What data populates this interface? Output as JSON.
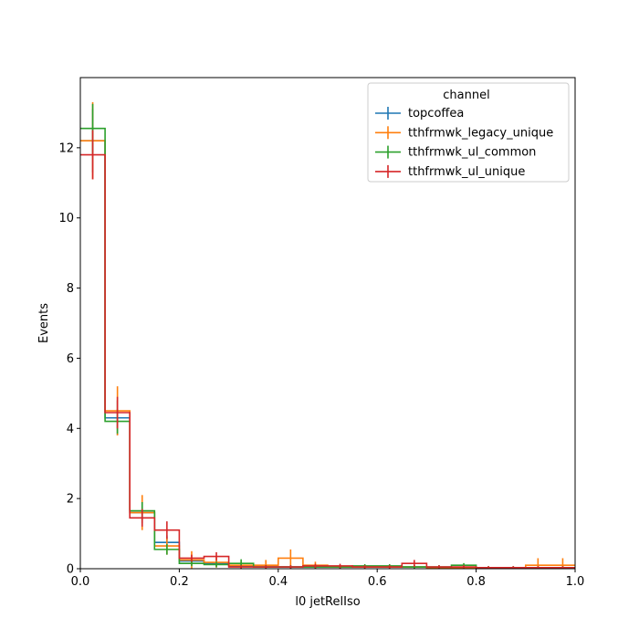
{
  "chart_data": {
    "type": "histogram-step",
    "xlabel": "l0 jetRelIso",
    "ylabel": "Events",
    "xlim": [
      0.0,
      1.0
    ],
    "ylim": [
      0,
      14
    ],
    "x_ticks": [
      0.0,
      0.2,
      0.4,
      0.6,
      0.8,
      1.0
    ],
    "x_tick_labels": [
      "0.0",
      "0.2",
      "0.4",
      "0.6",
      "0.8",
      "1.0"
    ],
    "y_ticks": [
      0,
      2,
      4,
      6,
      8,
      10,
      12
    ],
    "y_tick_labels": [
      "0",
      "2",
      "4",
      "6",
      "8",
      "10",
      "12"
    ],
    "grid": false,
    "legend": {
      "title": "channel",
      "placement": "top-right"
    },
    "bin_edges": [
      0.0,
      0.05,
      0.1,
      0.15,
      0.2,
      0.25,
      0.3,
      0.35,
      0.4,
      0.45,
      0.5,
      0.55,
      0.6,
      0.65,
      0.7,
      0.75,
      0.8,
      0.85,
      0.9,
      0.95,
      1.0
    ],
    "series": [
      {
        "name": "topcoffea",
        "color": "#1f77b4",
        "values": [
          12.2,
          4.3,
          1.6,
          0.75,
          0.22,
          0.15,
          0.08,
          0.05,
          0.05,
          0.05,
          0.05,
          0.05,
          0.05,
          0.05,
          0.03,
          0.03,
          0.03,
          0.03,
          0.03,
          0.03
        ],
        "errors": [
          0.9,
          0.5,
          0.3,
          0.2,
          0.1,
          0.08,
          0.06,
          0.05,
          0.05,
          0.05,
          0.05,
          0.05,
          0.05,
          0.05,
          0.04,
          0.04,
          0.04,
          0.04,
          0.04,
          0.04
        ]
      },
      {
        "name": "tthfrmwk_legacy_unique",
        "color": "#ff7f0e",
        "values": [
          12.2,
          4.5,
          1.6,
          0.65,
          0.25,
          0.18,
          0.1,
          0.1,
          0.3,
          0.1,
          0.05,
          0.05,
          0.05,
          0.05,
          0.03,
          0.03,
          0.03,
          0.03,
          0.1,
          0.1
        ],
        "errors": [
          1.1,
          0.7,
          0.5,
          0.25,
          0.25,
          0.15,
          0.1,
          0.15,
          0.25,
          0.1,
          0.05,
          0.05,
          0.05,
          0.05,
          0.04,
          0.04,
          0.04,
          0.04,
          0.2,
          0.2
        ]
      },
      {
        "name": "tthfrmwk_ul_common",
        "color": "#2ca02c",
        "values": [
          12.55,
          4.2,
          1.65,
          0.55,
          0.15,
          0.12,
          0.15,
          0.05,
          0.05,
          0.05,
          0.05,
          0.08,
          0.08,
          0.05,
          0.05,
          0.1,
          0.03,
          0.03,
          0.03,
          0.03
        ],
        "errors": [
          0.7,
          0.35,
          0.25,
          0.15,
          0.08,
          0.08,
          0.12,
          0.05,
          0.05,
          0.05,
          0.05,
          0.05,
          0.05,
          0.05,
          0.05,
          0.06,
          0.04,
          0.04,
          0.04,
          0.04
        ]
      },
      {
        "name": "tthfrmwk_ul_unique",
        "color": "#d62728",
        "values": [
          11.8,
          4.45,
          1.45,
          1.1,
          0.3,
          0.35,
          0.05,
          0.05,
          0.05,
          0.08,
          0.08,
          0.05,
          0.05,
          0.15,
          0.05,
          0.05,
          0.03,
          0.03,
          0.03,
          0.03
        ],
        "errors": [
          0.7,
          0.45,
          0.25,
          0.25,
          0.1,
          0.12,
          0.05,
          0.05,
          0.05,
          0.06,
          0.06,
          0.05,
          0.05,
          0.1,
          0.05,
          0.05,
          0.04,
          0.04,
          0.04,
          0.04
        ]
      }
    ]
  }
}
